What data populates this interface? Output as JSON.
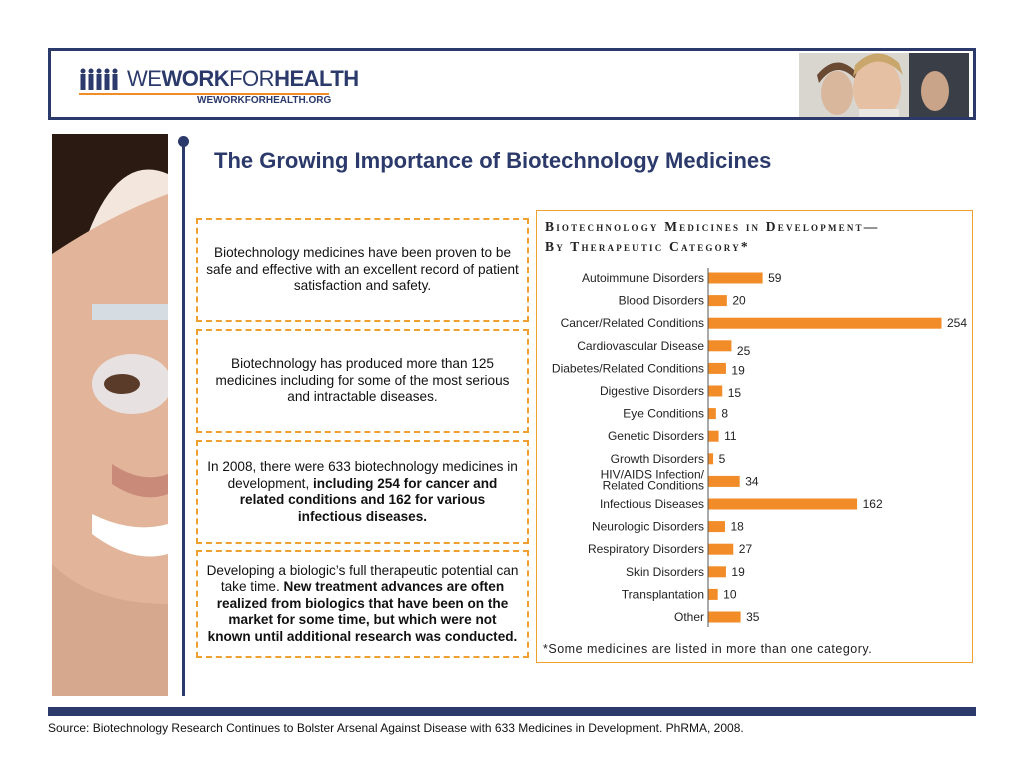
{
  "header": {
    "logo_we": "WE",
    "logo_work": "WORK",
    "logo_for": "FOR",
    "logo_health": "HEALTH",
    "logo_url": "WEWORKFORHEALTH.ORG"
  },
  "page_title": "The Growing Importance of Biotechnology Medicines",
  "boxes": {
    "box1": {
      "text": "Biotechnology medicines have been proven to be safe and effective with an excellent record of patient satisfaction and safety."
    },
    "box2": {
      "text": "Biotechnology has produced more than 125 medicines including for some of the most serious and intractable diseases."
    },
    "box3": {
      "text_plain": "In 2008, there were 633 biotechnology medicines in development, ",
      "text_bold": "including 254 for cancer and related conditions and 162 for various infectious diseases."
    },
    "box4": {
      "text_plain": "Developing a biologic’s full therapeutic potential can take time. ",
      "text_bold": "New treatment advances are often realized from biologics that have been on the market for some time, but which were not known until additional research was conducted."
    }
  },
  "chart_data": {
    "type": "bar",
    "orientation": "horizontal",
    "title_line1": "Biotechnology Medicines in Development—",
    "title_line2": "By Therapeutic Category*",
    "categories": [
      "Autoimmune Disorders",
      "Blood Disorders",
      "Cancer/Related Conditions",
      "Cardiovascular Disease",
      "Diabetes/Related Conditions",
      "Digestive Disorders",
      "Eye Conditions",
      "Genetic Disorders",
      "Growth Disorders",
      "HIV/AIDS Infection/ Related Conditions",
      "Infectious Diseases",
      "Neurologic Disorders",
      "Respiratory Disorders",
      "Skin Disorders",
      "Transplantation",
      "Other"
    ],
    "values": [
      59,
      20,
      254,
      25,
      19,
      15,
      8,
      11,
      5,
      34,
      162,
      18,
      27,
      19,
      10,
      35
    ],
    "bar_color": "#f28c28",
    "footnote": "*Some medicines are listed in more than one category."
  },
  "source": "Source: Biotechnology Research Continues to Bolster Arsenal Against Disease with 633 Medicines in Development. PhRMA, 2008."
}
